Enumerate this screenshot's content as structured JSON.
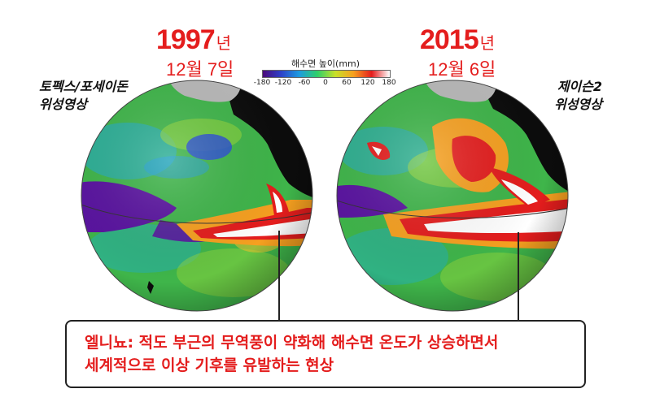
{
  "left_panel": {
    "year": "1997",
    "year_unit": "년",
    "date": "12월 7일",
    "satellite_lines": [
      "토펙스/포세이돈",
      "위성영상"
    ]
  },
  "right_panel": {
    "year": "2015",
    "year_unit": "년",
    "date": "12월 6일",
    "satellite_lines": [
      "제이슨2",
      "위성영상"
    ]
  },
  "color_scale": {
    "title": "해수면 높이(mm)",
    "ticks": [
      "-180",
      "-120",
      "-60",
      "0",
      "60",
      "120",
      "180"
    ],
    "colors": [
      "#4b0a7a",
      "#2d40c8",
      "#1e9be0",
      "#2fcf6a",
      "#c8e028",
      "#f6a020",
      "#e41d1d",
      "#ffffff"
    ]
  },
  "callout": {
    "line1": "엘니뇨: 적도 부근의 무역풍이 약화해 해수면 온도가 상승하면서",
    "line2": "세계적으로 이상 기후를 유발하는 현상"
  }
}
